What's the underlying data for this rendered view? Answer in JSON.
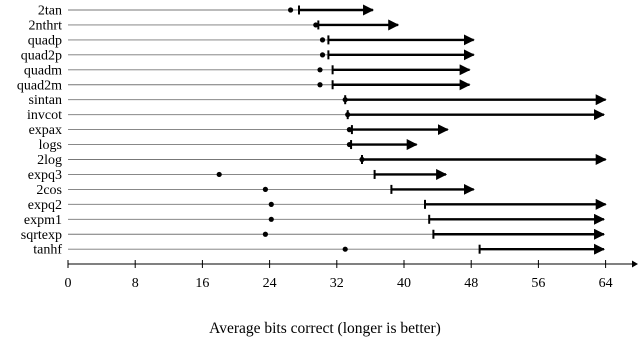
{
  "chart_data": {
    "type": "range-arrow",
    "xlabel": "Average bits correct (longer is better)",
    "ylabel": "",
    "title": "",
    "xlim": [
      0,
      68
    ],
    "xticks": [
      0,
      8,
      16,
      24,
      32,
      40,
      48,
      56,
      64
    ],
    "categories": [
      "2tan",
      "2nthrt",
      "quadp",
      "quad2p",
      "quadm",
      "quad2m",
      "sintan",
      "invcot",
      "expax",
      "logs",
      "2log",
      "expq3",
      "2cos",
      "expq2",
      "expm1",
      "sqrtexp",
      "tanhf"
    ],
    "series": [
      {
        "role": "dot",
        "values": [
          26.5,
          29.5,
          30.3,
          30.3,
          30.0,
          30.0,
          33.0,
          33.3,
          33.5,
          33.5,
          35.0,
          18.0,
          23.5,
          24.2,
          24.2,
          23.5,
          33.0
        ]
      },
      {
        "role": "bar-start",
        "values": [
          27.5,
          29.8,
          31.0,
          31.0,
          31.5,
          31.5,
          33.0,
          33.3,
          33.8,
          33.7,
          35.0,
          36.5,
          38.5,
          42.5,
          43.0,
          43.5,
          49.0
        ]
      },
      {
        "role": "arrow-end",
        "values": [
          36.3,
          39.3,
          48.3,
          48.3,
          47.8,
          47.8,
          64.0,
          63.8,
          45.2,
          41.5,
          64.0,
          45.0,
          48.3,
          64.0,
          63.8,
          63.8,
          63.8
        ]
      }
    ],
    "grid": false,
    "legend": "none"
  }
}
